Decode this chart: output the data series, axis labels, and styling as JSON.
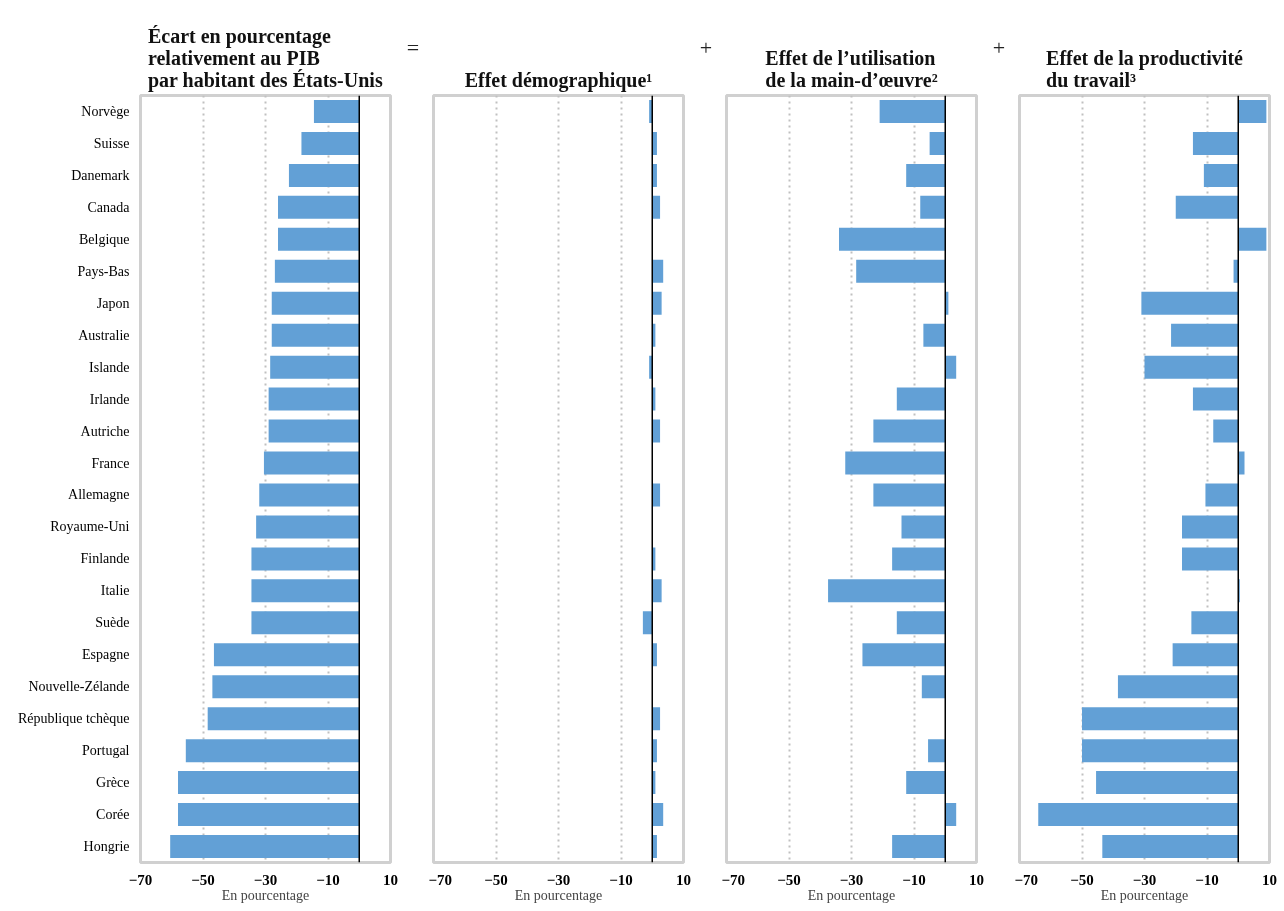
{
  "chart_data": [
    {
      "type": "bar",
      "orientation": "horizontal",
      "title": "Écart en pourcentage\nrelativement au PIB\npar habitant des États-Unis",
      "xlabel": "En pourcentage",
      "categories": [
        "Norvège",
        "Suisse",
        "Danemark",
        "Canada",
        "Belgique",
        "Pays-Bas",
        "Japon",
        "Australie",
        "Islande",
        "Irlande",
        "Autriche",
        "France",
        "Allemagne",
        "Royaume-Uni",
        "Finlande",
        "Italie",
        "Suède",
        "Espagne",
        "Nouvelle-Zélande",
        "République tchèque",
        "Portugal",
        "Grèce",
        "Corée",
        "Hongrie"
      ],
      "values": [
        -14.5,
        -18.5,
        -22.5,
        -26,
        -26,
        -27,
        -28,
        -28,
        -28.5,
        -29,
        -29,
        -30.5,
        -32,
        -33,
        -34.5,
        -34.5,
        -34.5,
        -46.5,
        -47,
        -48.5,
        -55.5,
        -58,
        -58,
        -60.5
      ],
      "color": "#62a0d6",
      "xlim": [
        -70,
        10
      ],
      "xticks": [
        -70,
        -50,
        -30,
        -10,
        10
      ],
      "grid": "x",
      "ref_lines": [
        {
          "axis": "x",
          "value": 0,
          "color": "#000000"
        }
      ]
    },
    {
      "type": "bar",
      "orientation": "horizontal",
      "title": "Effet démographique¹",
      "xlabel": "En pourcentage",
      "annotations": [
        "="
      ],
      "values": [
        -1,
        1.5,
        1.5,
        2.5,
        null,
        3.5,
        3,
        1,
        -1,
        1,
        2.5,
        null,
        2.5,
        null,
        1,
        3,
        -3,
        1.5,
        null,
        2.5,
        1.5,
        1,
        3.5,
        1.5
      ],
      "color": "#62a0d6",
      "xlim": [
        -70,
        10
      ],
      "xticks": [
        -70,
        -50,
        -30,
        -10,
        10
      ],
      "grid": "x",
      "tick_labels": "x",
      "ref_lines": [
        {
          "axis": "x",
          "value": 0,
          "color": "#000000"
        }
      ]
    },
    {
      "type": "bar",
      "orientation": "horizontal",
      "title": "Effet de l’utilisation\nde la main-d’œuvre²",
      "xlabel": "En pourcentage",
      "annotations": [
        "+"
      ],
      "values": [
        -21,
        -5,
        -12.5,
        -8,
        -34,
        -28.5,
        1,
        -7,
        3.5,
        -15.5,
        -23,
        -32,
        -23,
        -14,
        -17,
        -37.5,
        -15.5,
        -26.5,
        -7.5,
        0,
        -5.5,
        -12.5,
        3.5,
        -17
      ],
      "color": "#62a0d6",
      "xlim": [
        -70,
        10
      ],
      "xticks": [
        -70,
        -50,
        -30,
        -10,
        10
      ],
      "grid": "x",
      "tick_labels": "x",
      "ref_lines": [
        {
          "axis": "x",
          "value": 0,
          "color": "#000000"
        }
      ]
    },
    {
      "type": "bar",
      "orientation": "horizontal",
      "title": "Effet de la productivité\ndu travail³",
      "xlabel": "En pourcentage",
      "annotations": [
        "+"
      ],
      "values": [
        9,
        -14.5,
        -11,
        -20,
        9,
        -1.5,
        -31,
        -21.5,
        -30,
        -14.5,
        -8,
        2,
        -10.5,
        -18,
        -18,
        0.5,
        -15,
        -21,
        -38.5,
        -50,
        -50,
        -45.5,
        -64,
        -43.5
      ],
      "color": "#62a0d6",
      "xlim": [
        -70,
        10
      ],
      "xticks": [
        -70,
        -50,
        -30,
        -10,
        10
      ],
      "grid": "x",
      "tick_labels": "x",
      "ref_lines": [
        {
          "axis": "x",
          "value": 0,
          "color": "#000000"
        }
      ]
    }
  ]
}
